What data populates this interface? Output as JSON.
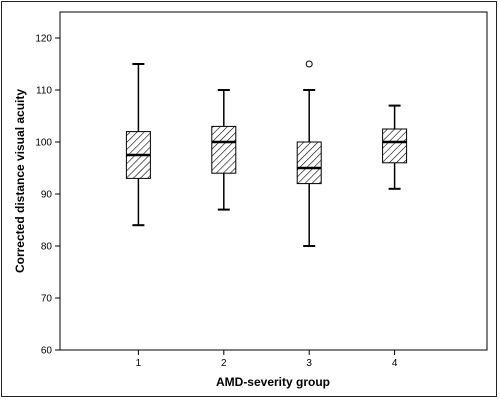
{
  "chart_data": {
    "type": "boxplot",
    "title": "",
    "xlabel": "AMD-severity group",
    "ylabel": "Corrected distance visual acuity",
    "ylim": [
      60,
      125
    ],
    "yticks": [
      60,
      70,
      80,
      90,
      100,
      110,
      120
    ],
    "grid": false,
    "categories": [
      "1",
      "2",
      "3",
      "4"
    ],
    "boxes": [
      {
        "category": "1",
        "whisker_low": 84,
        "q1": 93,
        "median": 97.5,
        "q3": 102,
        "whisker_high": 115,
        "outliers": []
      },
      {
        "category": "2",
        "whisker_low": 87,
        "q1": 94,
        "median": 100,
        "q3": 103,
        "whisker_high": 110,
        "outliers": []
      },
      {
        "category": "3",
        "whisker_low": 80,
        "q1": 92,
        "median": 95,
        "q3": 100,
        "whisker_high": 110,
        "outliers": [
          115
        ]
      },
      {
        "category": "4",
        "whisker_low": 91,
        "q1": 96,
        "median": 100,
        "q3": 102.5,
        "whisker_high": 107,
        "outliers": []
      }
    ],
    "box_fill": "hatched",
    "colors": {
      "stroke": "#000000",
      "background": "#ffffff",
      "border": "#222222"
    }
  }
}
